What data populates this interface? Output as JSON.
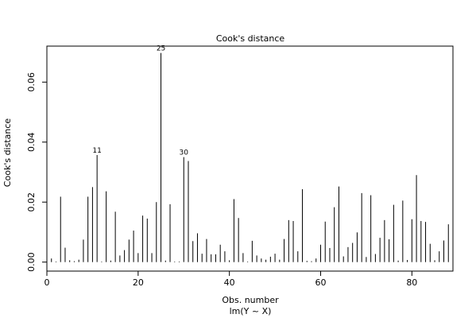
{
  "chart_data": {
    "type": "bar",
    "title": "Cook's distance",
    "xlabel": "Obs. number",
    "sublabel": "lm(Y ~ X)",
    "ylabel": "Cook's distance",
    "xlim": [
      0,
      89
    ],
    "ylim": [
      -0.003,
      0.072
    ],
    "xticks": [
      0,
      20,
      40,
      60,
      80
    ],
    "yticks": [
      0.0,
      0.02,
      0.04,
      0.06
    ],
    "ytick_labels": [
      "0.00",
      "0.02",
      "0.04",
      "0.06"
    ],
    "grid": false,
    "x": [
      1,
      2,
      3,
      4,
      5,
      6,
      7,
      8,
      9,
      10,
      11,
      12,
      13,
      14,
      15,
      16,
      17,
      18,
      19,
      20,
      21,
      22,
      23,
      24,
      25,
      26,
      27,
      28,
      29,
      30,
      31,
      32,
      33,
      34,
      35,
      36,
      37,
      38,
      39,
      40,
      41,
      42,
      43,
      44,
      45,
      46,
      47,
      48,
      49,
      50,
      51,
      52,
      53,
      54,
      55,
      56,
      57,
      58,
      59,
      60,
      61,
      62,
      63,
      64,
      65,
      66,
      67,
      68,
      69,
      70,
      71,
      72,
      73,
      74,
      75,
      76,
      77,
      78,
      79,
      80,
      81,
      82,
      83,
      84,
      85,
      86,
      87,
      88
    ],
    "values": [
      0.0012,
      0.0002,
      0.0218,
      0.0048,
      0.0006,
      0.0003,
      0.0008,
      0.0075,
      0.0218,
      0.025,
      0.0357,
      0.0002,
      0.0236,
      0.0005,
      0.0168,
      0.0022,
      0.004,
      0.0075,
      0.0105,
      0.003,
      0.0155,
      0.0145,
      0.003,
      0.02,
      0.0697,
      0.0005,
      0.0193,
      0.0002,
      0.0002,
      0.035,
      0.0337,
      0.007,
      0.0096,
      0.0028,
      0.0077,
      0.0026,
      0.0026,
      0.0058,
      0.0036,
      0.0006,
      0.021,
      0.0147,
      0.003,
      0.0002,
      0.0071,
      0.0022,
      0.0012,
      0.0008,
      0.0018,
      0.0028,
      0.0008,
      0.0077,
      0.014,
      0.0137,
      0.0036,
      0.0243,
      0.0004,
      0.0003,
      0.0012,
      0.0058,
      0.0135,
      0.0047,
      0.0183,
      0.0252,
      0.0019,
      0.005,
      0.0064,
      0.0099,
      0.023,
      0.0017,
      0.0223,
      0.0027,
      0.0081,
      0.014,
      0.0076,
      0.0191,
      0.0005,
      0.0205,
      0.0007,
      0.0143,
      0.029,
      0.0137,
      0.0134,
      0.0061,
      0.0006,
      0.0036,
      0.0072,
      0.0126
    ],
    "annotations": [
      {
        "x": 11,
        "y": 0.0357,
        "label": "11"
      },
      {
        "x": 25,
        "y": 0.0697,
        "label": "25"
      },
      {
        "x": 30,
        "y": 0.035,
        "label": "30"
      }
    ]
  }
}
